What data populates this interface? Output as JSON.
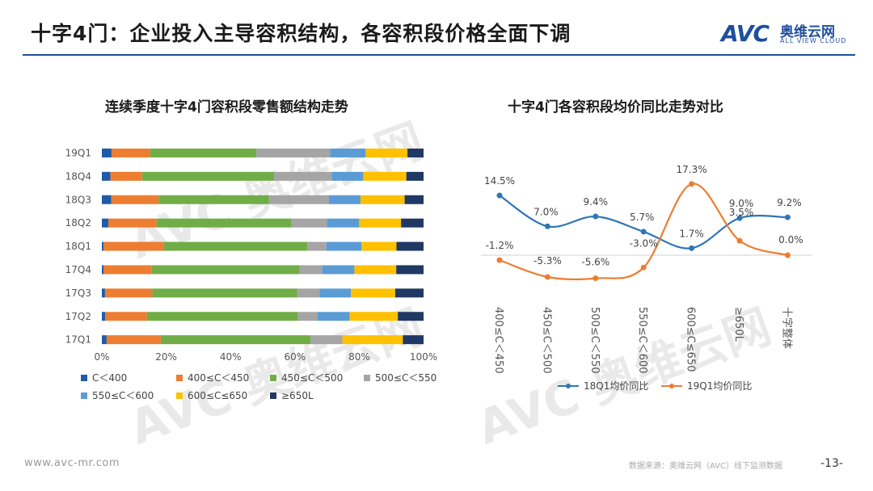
{
  "header": {
    "title": "十字4门：企业投入主导容积结构，各容积段价格全面下调",
    "logo_mark": "AVC",
    "logo_cn": "奥维云网",
    "logo_en": "ALL VIEW CLOUD"
  },
  "watermark": {
    "text": "AVC 奥维云网",
    "sub": "ALL VIEW CLOUD"
  },
  "colors": {
    "accent": "#1f4e9c"
  },
  "chart_data": [
    {
      "type": "bar",
      "orientation": "horizontal",
      "stacked": "percent",
      "title": "连续季度十字4门容积段零售额结构走势",
      "categories": [
        "19Q1",
        "18Q4",
        "18Q3",
        "18Q2",
        "18Q1",
        "17Q4",
        "17Q3",
        "17Q2",
        "17Q1"
      ],
      "series": [
        {
          "name": "C＜400",
          "color": "#1f5ba8",
          "values": [
            3,
            3,
            3,
            2,
            0.5,
            0.5,
            1,
            1,
            1.5
          ]
        },
        {
          "name": "400≤C＜450",
          "color": "#ed7d31",
          "values": [
            12,
            11,
            15,
            15,
            19,
            15,
            15,
            13,
            17
          ]
        },
        {
          "name": "450≤C＜500",
          "color": "#70ad47",
          "values": [
            33,
            46,
            35,
            42,
            45,
            46,
            46,
            47,
            47
          ]
        },
        {
          "name": "500≤C＜550",
          "color": "#a5a5a5",
          "values": [
            23,
            20,
            19,
            11,
            6,
            7,
            7,
            6,
            10
          ]
        },
        {
          "name": "550≤C＜600",
          "color": "#5b9bd5",
          "values": [
            11,
            11,
            10,
            10,
            11,
            10,
            10,
            10,
            0
          ]
        },
        {
          "name": "600≤C≤650",
          "color": "#ffc000",
          "values": [
            13,
            15,
            14,
            13,
            11,
            13,
            14,
            15,
            19
          ]
        },
        {
          "name": "≥650L",
          "color": "#1f3864",
          "values": [
            5,
            6,
            6,
            7,
            8.5,
            8.5,
            9,
            8,
            6.5
          ]
        }
      ],
      "xticks": [
        "0%",
        "20%",
        "40%",
        "60%",
        "80%",
        "100%"
      ],
      "xlim": [
        0,
        100
      ],
      "legend_position": "bottom"
    },
    {
      "type": "line",
      "title": "十字4门各容积段均价同比走势对比",
      "categories": [
        "400≤C＜450",
        "450≤C＜500",
        "500≤C＜550",
        "550≤C＜600",
        "600≤C≤650",
        "≥650L",
        "十字整体"
      ],
      "series": [
        {
          "name": "18Q1均价同比",
          "color": "#2e75b6",
          "values": [
            14.5,
            7.0,
            9.4,
            5.7,
            1.7,
            9.0,
            9.2
          ],
          "labels": [
            "14.5%",
            "7.0%",
            "9.4%",
            "5.7%",
            "1.7%",
            "9.0%",
            "9.2%"
          ]
        },
        {
          "name": "19Q1均价同比",
          "color": "#ed7d31",
          "values": [
            -1.2,
            -5.3,
            -5.6,
            -3.0,
            17.3,
            3.5,
            0.0
          ],
          "labels": [
            "-1.2%",
            "-5.3%",
            "-5.6%",
            "-3.0%",
            "17.3%",
            "3.5%",
            "0.0%"
          ]
        }
      ],
      "ylim": [
        -8,
        20
      ],
      "legend_position": "bottom"
    }
  ],
  "footer": {
    "website": "www.avc-mr.com",
    "source": "数据来源：奥维云网（AVC）线下监测数据",
    "page": "-13-"
  }
}
